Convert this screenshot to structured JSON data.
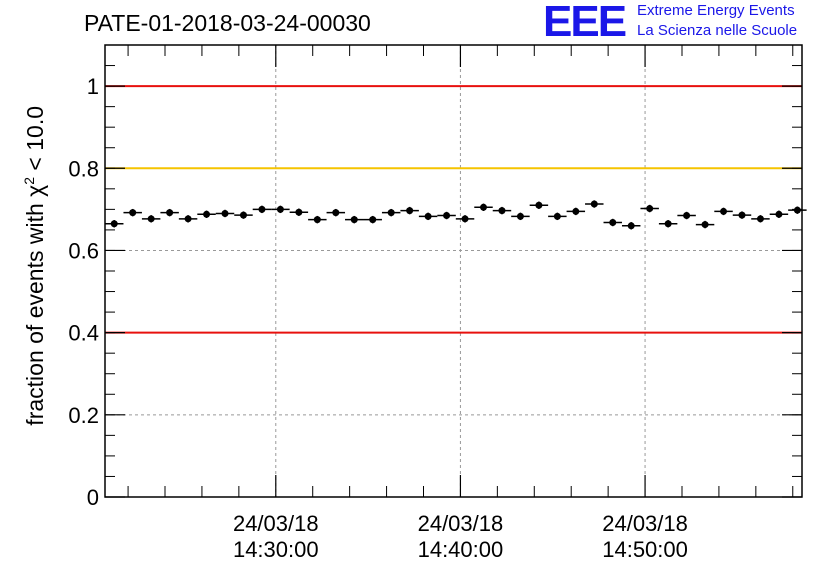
{
  "header": {
    "title": "PATE-01-2018-03-24-00030",
    "logo": "EEE",
    "logo_line1": "Extreme Energy Events",
    "logo_line2": "La Scienza nelle Scuole"
  },
  "chart_data": {
    "type": "scatter",
    "ylabel_prefix": "fraction of events with ",
    "ylabel_chi": "χ",
    "ylabel_sup": "2",
    "ylabel_suffix": " < 10.0",
    "ylim": [
      0,
      1.1
    ],
    "yticks": [
      "0",
      "0.2",
      "0.4",
      "0.6",
      "0.8",
      "1"
    ],
    "xrange_minutes": [
      20.75,
      58.5
    ],
    "xticks": [
      {
        "minute": 30,
        "date": "24/03/18",
        "time": "14:30:00"
      },
      {
        "minute": 40,
        "date": "24/03/18",
        "time": "14:40:00"
      },
      {
        "minute": 50,
        "date": "24/03/18",
        "time": "14:50:00"
      }
    ],
    "reference_lines": [
      {
        "y": 1.0,
        "color": "#e8100e"
      },
      {
        "y": 0.8,
        "color": "#f5c400"
      },
      {
        "y": 0.4,
        "color": "#e8100e"
      }
    ],
    "grid": true,
    "series": [
      {
        "x_minutes": [
          21.25,
          22.25,
          23.25,
          24.25,
          25.25,
          26.25,
          27.25,
          28.25,
          29.25,
          30.25,
          31.25,
          32.25,
          33.25,
          34.25,
          35.25,
          36.25,
          37.25,
          38.25,
          39.25,
          40.25,
          41.25,
          42.25,
          43.25,
          44.25,
          45.25,
          46.25,
          47.25,
          48.25,
          49.25,
          50.25,
          51.25,
          52.25,
          53.25,
          54.25,
          55.25,
          56.25,
          57.25,
          58.25
        ],
        "y": [
          0.665,
          0.692,
          0.677,
          0.692,
          0.677,
          0.688,
          0.69,
          0.686,
          0.7,
          0.7,
          0.693,
          0.675,
          0.692,
          0.675,
          0.675,
          0.692,
          0.697,
          0.683,
          0.685,
          0.677,
          0.705,
          0.697,
          0.683,
          0.71,
          0.683,
          0.695,
          0.713,
          0.668,
          0.66,
          0.702,
          0.665,
          0.685,
          0.663,
          0.695,
          0.686,
          0.677,
          0.688,
          0.698
        ],
        "err": [
          0.009,
          0.009,
          0.009,
          0.009,
          0.009,
          0.009,
          0.009,
          0.009,
          0.009,
          0.009,
          0.009,
          0.009,
          0.009,
          0.009,
          0.009,
          0.009,
          0.009,
          0.009,
          0.009,
          0.009,
          0.009,
          0.009,
          0.009,
          0.009,
          0.009,
          0.009,
          0.009,
          0.009,
          0.009,
          0.009,
          0.009,
          0.009,
          0.009,
          0.009,
          0.009,
          0.009,
          0.009,
          0.009
        ],
        "color": "#000000"
      }
    ]
  }
}
